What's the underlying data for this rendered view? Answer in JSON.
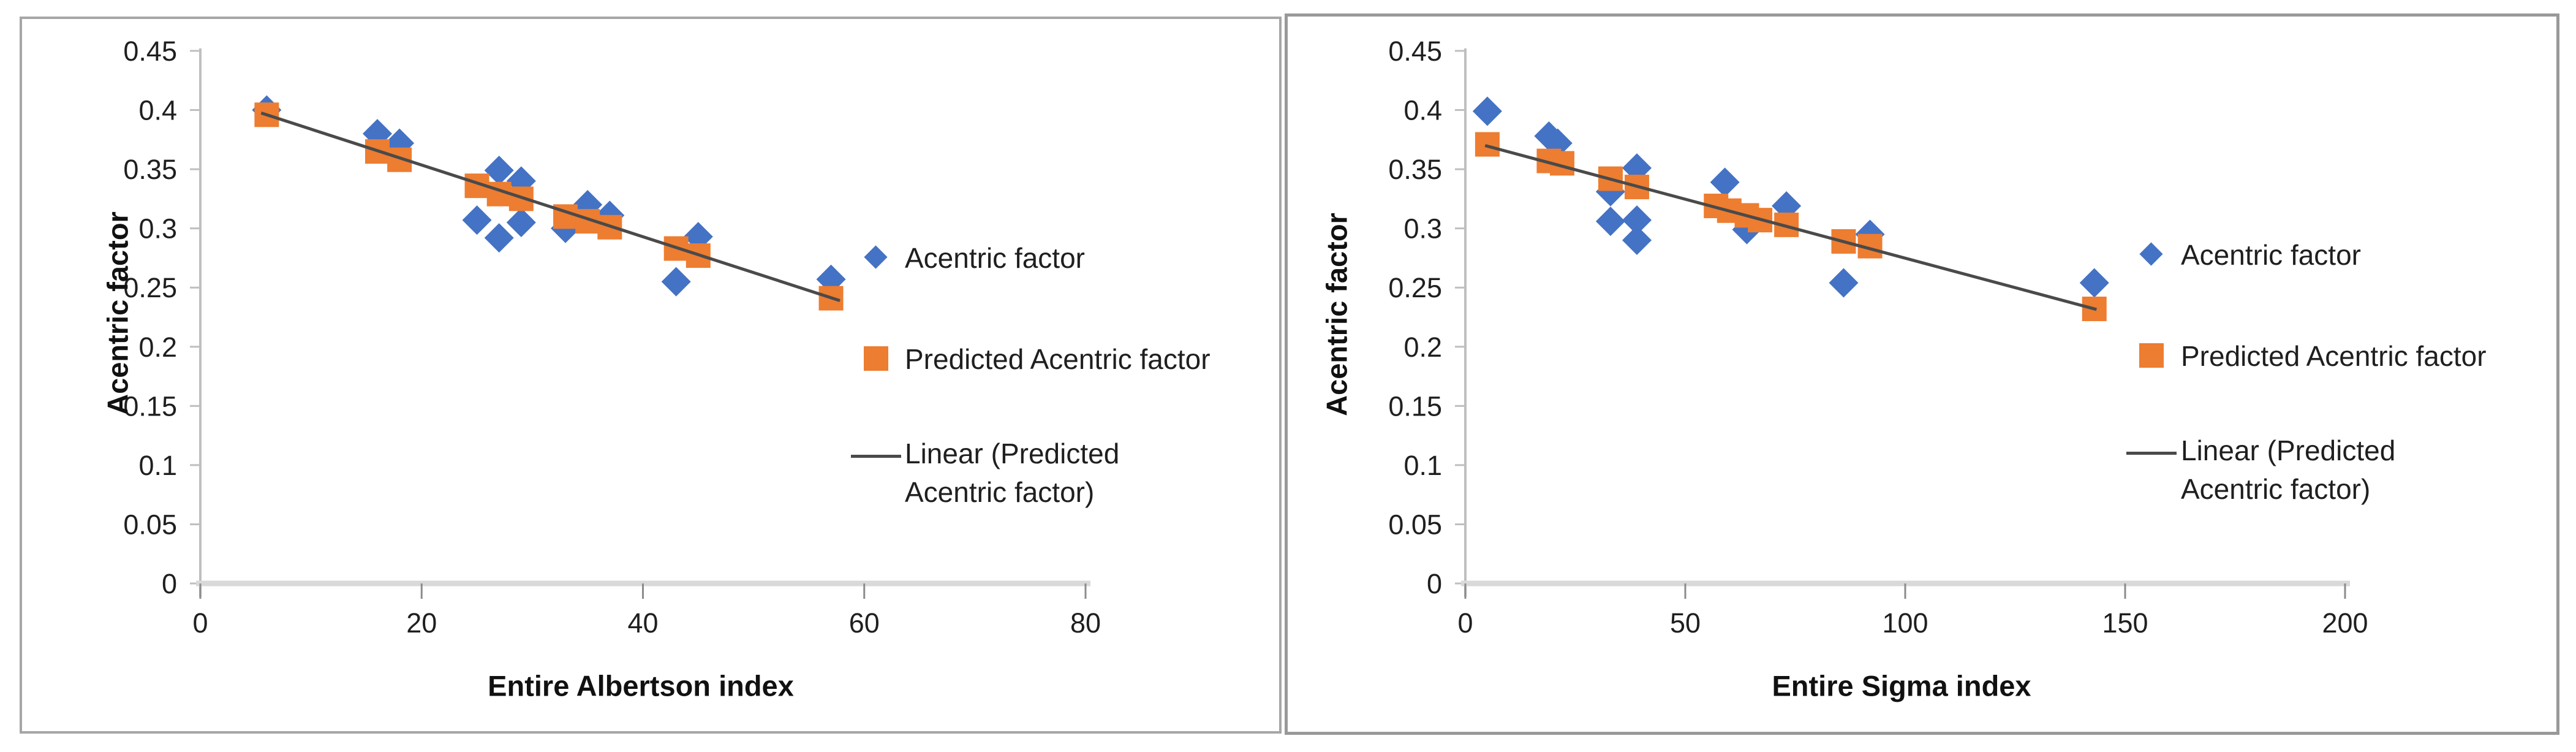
{
  "colors": {
    "actual": "#4472C4",
    "predicted": "#ED7D31",
    "trend": "#4a4a4a",
    "axis_line": "#BFBFBF",
    "baseline": "#D9D9D9",
    "tick_stub": "#8C8C8C",
    "text": "#1f1f1f",
    "panel_border": "#A6A6A6"
  },
  "chart_data": [
    {
      "type": "scatter",
      "title": "",
      "xlabel": "Entire Albertson index",
      "ylabel": "Acentric factor",
      "xlim": [
        0,
        80
      ],
      "ylim": [
        0,
        0.45
      ],
      "grid": false,
      "legend_position": "right",
      "xticks": [
        0,
        20,
        40,
        60,
        80
      ],
      "xtick_labels": [
        "0",
        "20",
        "40",
        "60",
        "80"
      ],
      "yticks": [
        0,
        0.05,
        0.1,
        0.15,
        0.2,
        0.25,
        0.3,
        0.35,
        0.4,
        0.45
      ],
      "ytick_labels": [
        "0",
        "0.05",
        "0.1",
        "0.15",
        "0.2",
        "0.25",
        "0.3",
        "0.35",
        "0.4",
        "0.45"
      ],
      "series": [
        {
          "name": "Acentric factor",
          "marker": "diamond",
          "color": "#4472C4",
          "points": [
            [
              6,
              0.4
            ],
            [
              16,
              0.38
            ],
            [
              18,
              0.372
            ],
            [
              25,
              0.307
            ],
            [
              27,
              0.349
            ],
            [
              27,
              0.292
            ],
            [
              29,
              0.34
            ],
            [
              29,
              0.305
            ],
            [
              33,
              0.3
            ],
            [
              35,
              0.32
            ],
            [
              37,
              0.311
            ],
            [
              43,
              0.255
            ],
            [
              45,
              0.293
            ],
            [
              57,
              0.257
            ]
          ]
        },
        {
          "name": "Predicted Acentric factor",
          "marker": "square",
          "color": "#ED7D31",
          "points": [
            [
              6,
              0.396
            ],
            [
              16,
              0.365
            ],
            [
              18,
              0.358
            ],
            [
              25,
              0.336
            ],
            [
              27,
              0.329
            ],
            [
              29,
              0.325
            ],
            [
              33,
              0.31
            ],
            [
              35,
              0.306
            ],
            [
              37,
              0.301
            ],
            [
              43,
              0.283
            ],
            [
              45,
              0.277
            ],
            [
              57,
              0.241
            ]
          ]
        }
      ],
      "trendline": {
        "name": "Linear (Predicted Acentric factor)",
        "label_line1": "Linear (Predicted",
        "label_line2": "Acentric factor)",
        "color": "#4a4a4a",
        "x1": 5.5,
        "y1": 0.3975,
        "x2": 57.8,
        "y2": 0.239
      }
    },
    {
      "type": "scatter",
      "title": "",
      "xlabel": "Entire Sigma index",
      "ylabel": "Acentric factor",
      "xlim": [
        0,
        200
      ],
      "ylim": [
        0,
        0.45
      ],
      "grid": false,
      "legend_position": "right",
      "xticks": [
        0,
        50,
        100,
        150,
        200
      ],
      "xtick_labels": [
        "0",
        "50",
        "100",
        "150",
        "200"
      ],
      "yticks": [
        0,
        0.05,
        0.1,
        0.15,
        0.2,
        0.25,
        0.3,
        0.35,
        0.4,
        0.45
      ],
      "ytick_labels": [
        "0",
        "0.05",
        "0.1",
        "0.15",
        "0.2",
        "0.25",
        "0.3",
        "0.35",
        "0.4",
        "0.45"
      ],
      "series": [
        {
          "name": "Acentric factor",
          "marker": "diamond",
          "color": "#4472C4",
          "points": [
            [
              5,
              0.399
            ],
            [
              19,
              0.378
            ],
            [
              21,
              0.372
            ],
            [
              33,
              0.331
            ],
            [
              33,
              0.306
            ],
            [
              39,
              0.351
            ],
            [
              39,
              0.307
            ],
            [
              39,
              0.29
            ],
            [
              59,
              0.339
            ],
            [
              64,
              0.299
            ],
            [
              73,
              0.319
            ],
            [
              86,
              0.254
            ],
            [
              92,
              0.295
            ],
            [
              143,
              0.254
            ]
          ]
        },
        {
          "name": "Predicted Acentric factor",
          "marker": "square",
          "color": "#ED7D31",
          "points": [
            [
              5,
              0.371
            ],
            [
              19,
              0.357
            ],
            [
              22,
              0.355
            ],
            [
              33,
              0.342
            ],
            [
              39,
              0.335
            ],
            [
              57,
              0.319
            ],
            [
              60,
              0.315
            ],
            [
              64,
              0.311
            ],
            [
              67,
              0.307
            ],
            [
              73,
              0.303
            ],
            [
              86,
              0.289
            ],
            [
              92,
              0.285
            ],
            [
              143,
              0.232
            ]
          ]
        }
      ],
      "trendline": {
        "name": "Linear (Predicted Acentric factor)",
        "label_line1": "Linear (Predicted",
        "label_line2": "Acentric factor)",
        "color": "#4a4a4a",
        "x1": 4.5,
        "y1": 0.37,
        "x2": 143.5,
        "y2": 0.2315
      }
    }
  ]
}
